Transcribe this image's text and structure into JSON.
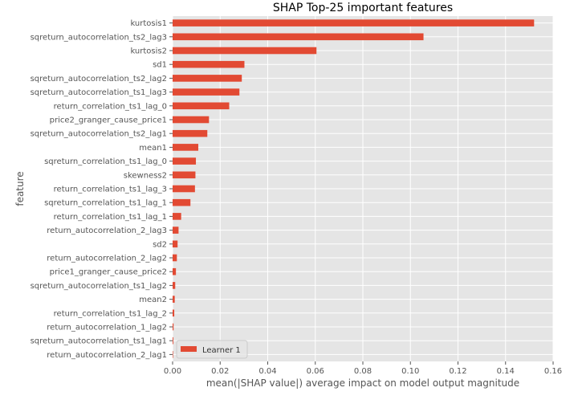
{
  "colors": {
    "bar": "#e24a33",
    "plot_bg": "#e5e5e5",
    "grid": "#ffffff",
    "text": "#555555",
    "title": "#000000"
  },
  "chart_data": {
    "type": "bar",
    "orientation": "horizontal",
    "title": "SHAP Top-25 important features",
    "xlabel": "mean(|SHAP value|) average impact on model output magnitude",
    "ylabel": "feature",
    "xlim": [
      0,
      0.16
    ],
    "xticks": [
      "0.00",
      "0.02",
      "0.04",
      "0.06",
      "0.08",
      "0.10",
      "0.12",
      "0.14",
      "0.16"
    ],
    "grid": true,
    "legend": {
      "position": "lower-left",
      "entries": [
        "Learner 1"
      ]
    },
    "categories": [
      "kurtosis1",
      "sqreturn_autocorrelation_ts2_lag3",
      "kurtosis2",
      "sd1",
      "sqreturn_autocorrelation_ts2_lag2",
      "sqreturn_autocorrelation_ts1_lag3",
      "return_correlation_ts1_lag_0",
      "price2_granger_cause_price1",
      "sqreturn_autocorrelation_ts2_lag1",
      "mean1",
      "sqreturn_correlation_ts1_lag_0",
      "skewness2",
      "return_correlation_ts1_lag_3",
      "sqreturn_correlation_ts1_lag_1",
      "return_correlation_ts1_lag_1",
      "return_autocorrelation_2_lag3",
      "sd2",
      "return_autocorrelation_2_lag2",
      "price1_granger_cause_price2",
      "sqreturn_autocorrelation_ts1_lag2",
      "mean2",
      "return_correlation_ts1_lag_2",
      "return_autocorrelation_1_lag2",
      "sqreturn_autocorrelation_ts1_lag1",
      "return_autocorrelation_2_lag1"
    ],
    "series": [
      {
        "name": "Learner 1",
        "values": [
          0.152,
          0.1055,
          0.0605,
          0.0302,
          0.0291,
          0.0281,
          0.0238,
          0.0153,
          0.0146,
          0.0108,
          0.0098,
          0.0096,
          0.0094,
          0.0075,
          0.0036,
          0.0025,
          0.0021,
          0.0018,
          0.0014,
          0.0011,
          0.0009,
          0.0007,
          0.0004,
          0.0003,
          0.0002
        ]
      }
    ]
  }
}
